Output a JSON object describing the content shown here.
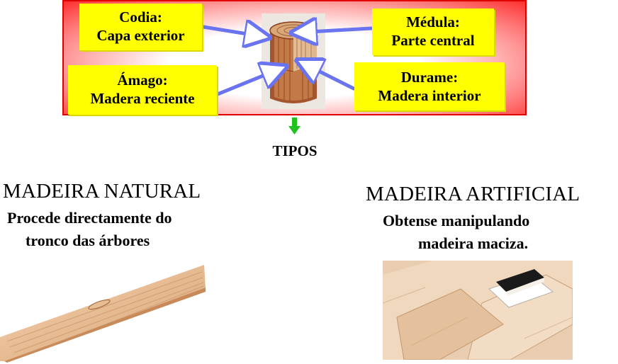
{
  "labels": {
    "codia": {
      "line1": "Codia:",
      "line2": "Capa exterior"
    },
    "medula": {
      "line1": "Médula:",
      "line2": "Parte central"
    },
    "amago": {
      "line1": "Ámago:",
      "line2": "Madera reciente"
    },
    "durame": {
      "line1": "Durame:",
      "line2": "Madera interior"
    }
  },
  "tipos": "TIPOS",
  "natural": {
    "title": "MADEIRA NATURAL",
    "desc_line1": "Procede directamente do",
    "desc_line2": "tronco das árbores"
  },
  "artificial": {
    "title": "MADEIRA ARTIFICIAL",
    "desc_line1": "Obtense manipulando",
    "desc_line2": "madeira maciza."
  },
  "colors": {
    "label_bg": "#ffff00",
    "banner_edge": "#ff2a2a",
    "pointer_arrow": "#6a73f0",
    "down_arrow": "#1fc21f",
    "wood": "#c98a5a"
  }
}
